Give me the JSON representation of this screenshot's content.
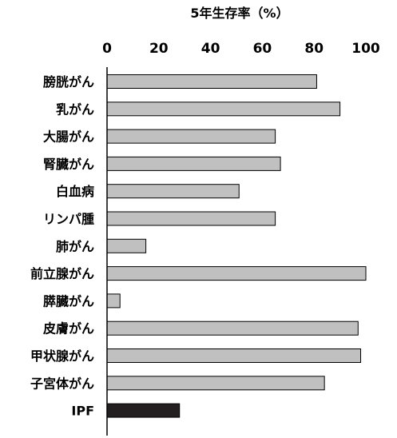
{
  "chart_data": {
    "type": "bar",
    "orientation": "horizontal",
    "title": "5年生存率（%）",
    "categories": [
      "膀胱がん",
      "乳がん",
      "大腸がん",
      "腎臓がん",
      "白血病",
      "リンパ腫",
      "肺がん",
      "前立腺がん",
      "膵臓がん",
      "皮膚がん",
      "甲状腺がん",
      "子宮体がん",
      "IPF"
    ],
    "values": [
      81,
      90,
      65,
      67,
      51,
      65,
      15,
      100,
      5,
      97,
      98,
      84,
      28
    ],
    "xlim": [
      0,
      100
    ],
    "xticks": [
      "0",
      "20",
      "40",
      "60",
      "80",
      "100"
    ],
    "axis_position": "top",
    "grid": false,
    "legend": "none",
    "colors": {
      "bar": "#c0c0c0",
      "highlight_bar": "#231f20",
      "bar_edge": "#000000"
    },
    "highlight_category": "IPF"
  }
}
